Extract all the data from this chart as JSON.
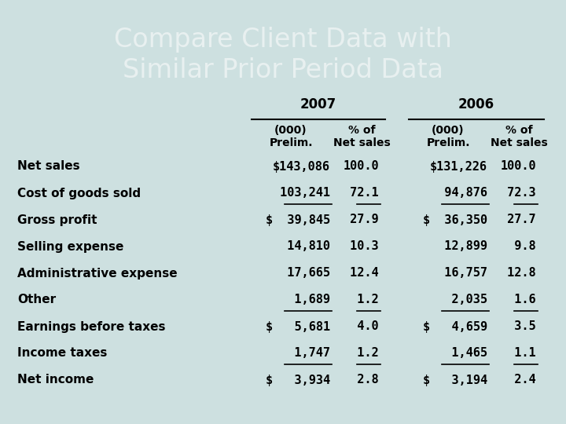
{
  "title": "Compare Client Data with\nSimilar Prior Period Data",
  "bg_color": "#cde0e0",
  "title_color": "#e8f0f0",
  "text_color": "#000000",
  "row_labels": [
    "Net sales",
    "Cost of goods sold",
    "Gross profit",
    "Selling expense",
    "Administrative expense",
    "Other",
    "Earnings before taxes",
    "Income taxes",
    "Net income"
  ],
  "col_2007_prelim": [
    "$143,086",
    " 103,241",
    "$  39,845",
    "  14,810",
    "  17,665",
    "   1,689",
    "$   5,681",
    "   1,747",
    "$   3,934"
  ],
  "col_2007_pct": [
    "100.0",
    " 72.1",
    " 27.9",
    " 10.3",
    " 12.4",
    "  1.2",
    "  4.0",
    "  1.2",
    "  2.8"
  ],
  "col_2006_prelim": [
    "$131,226",
    "  94,876",
    "$  36,350",
    "  12,899",
    "  16,757",
    "   2,035",
    "$   4,659",
    "   1,465",
    "$   3,194"
  ],
  "col_2006_pct": [
    "100.0",
    " 72.3",
    " 27.7",
    "  9.8",
    " 12.8",
    "  1.6",
    "  3.5",
    "  1.1",
    "  2.4"
  ],
  "underline_rows": [
    1,
    5,
    7
  ],
  "header_year_2007": "2007",
  "header_year_2006": "2006"
}
